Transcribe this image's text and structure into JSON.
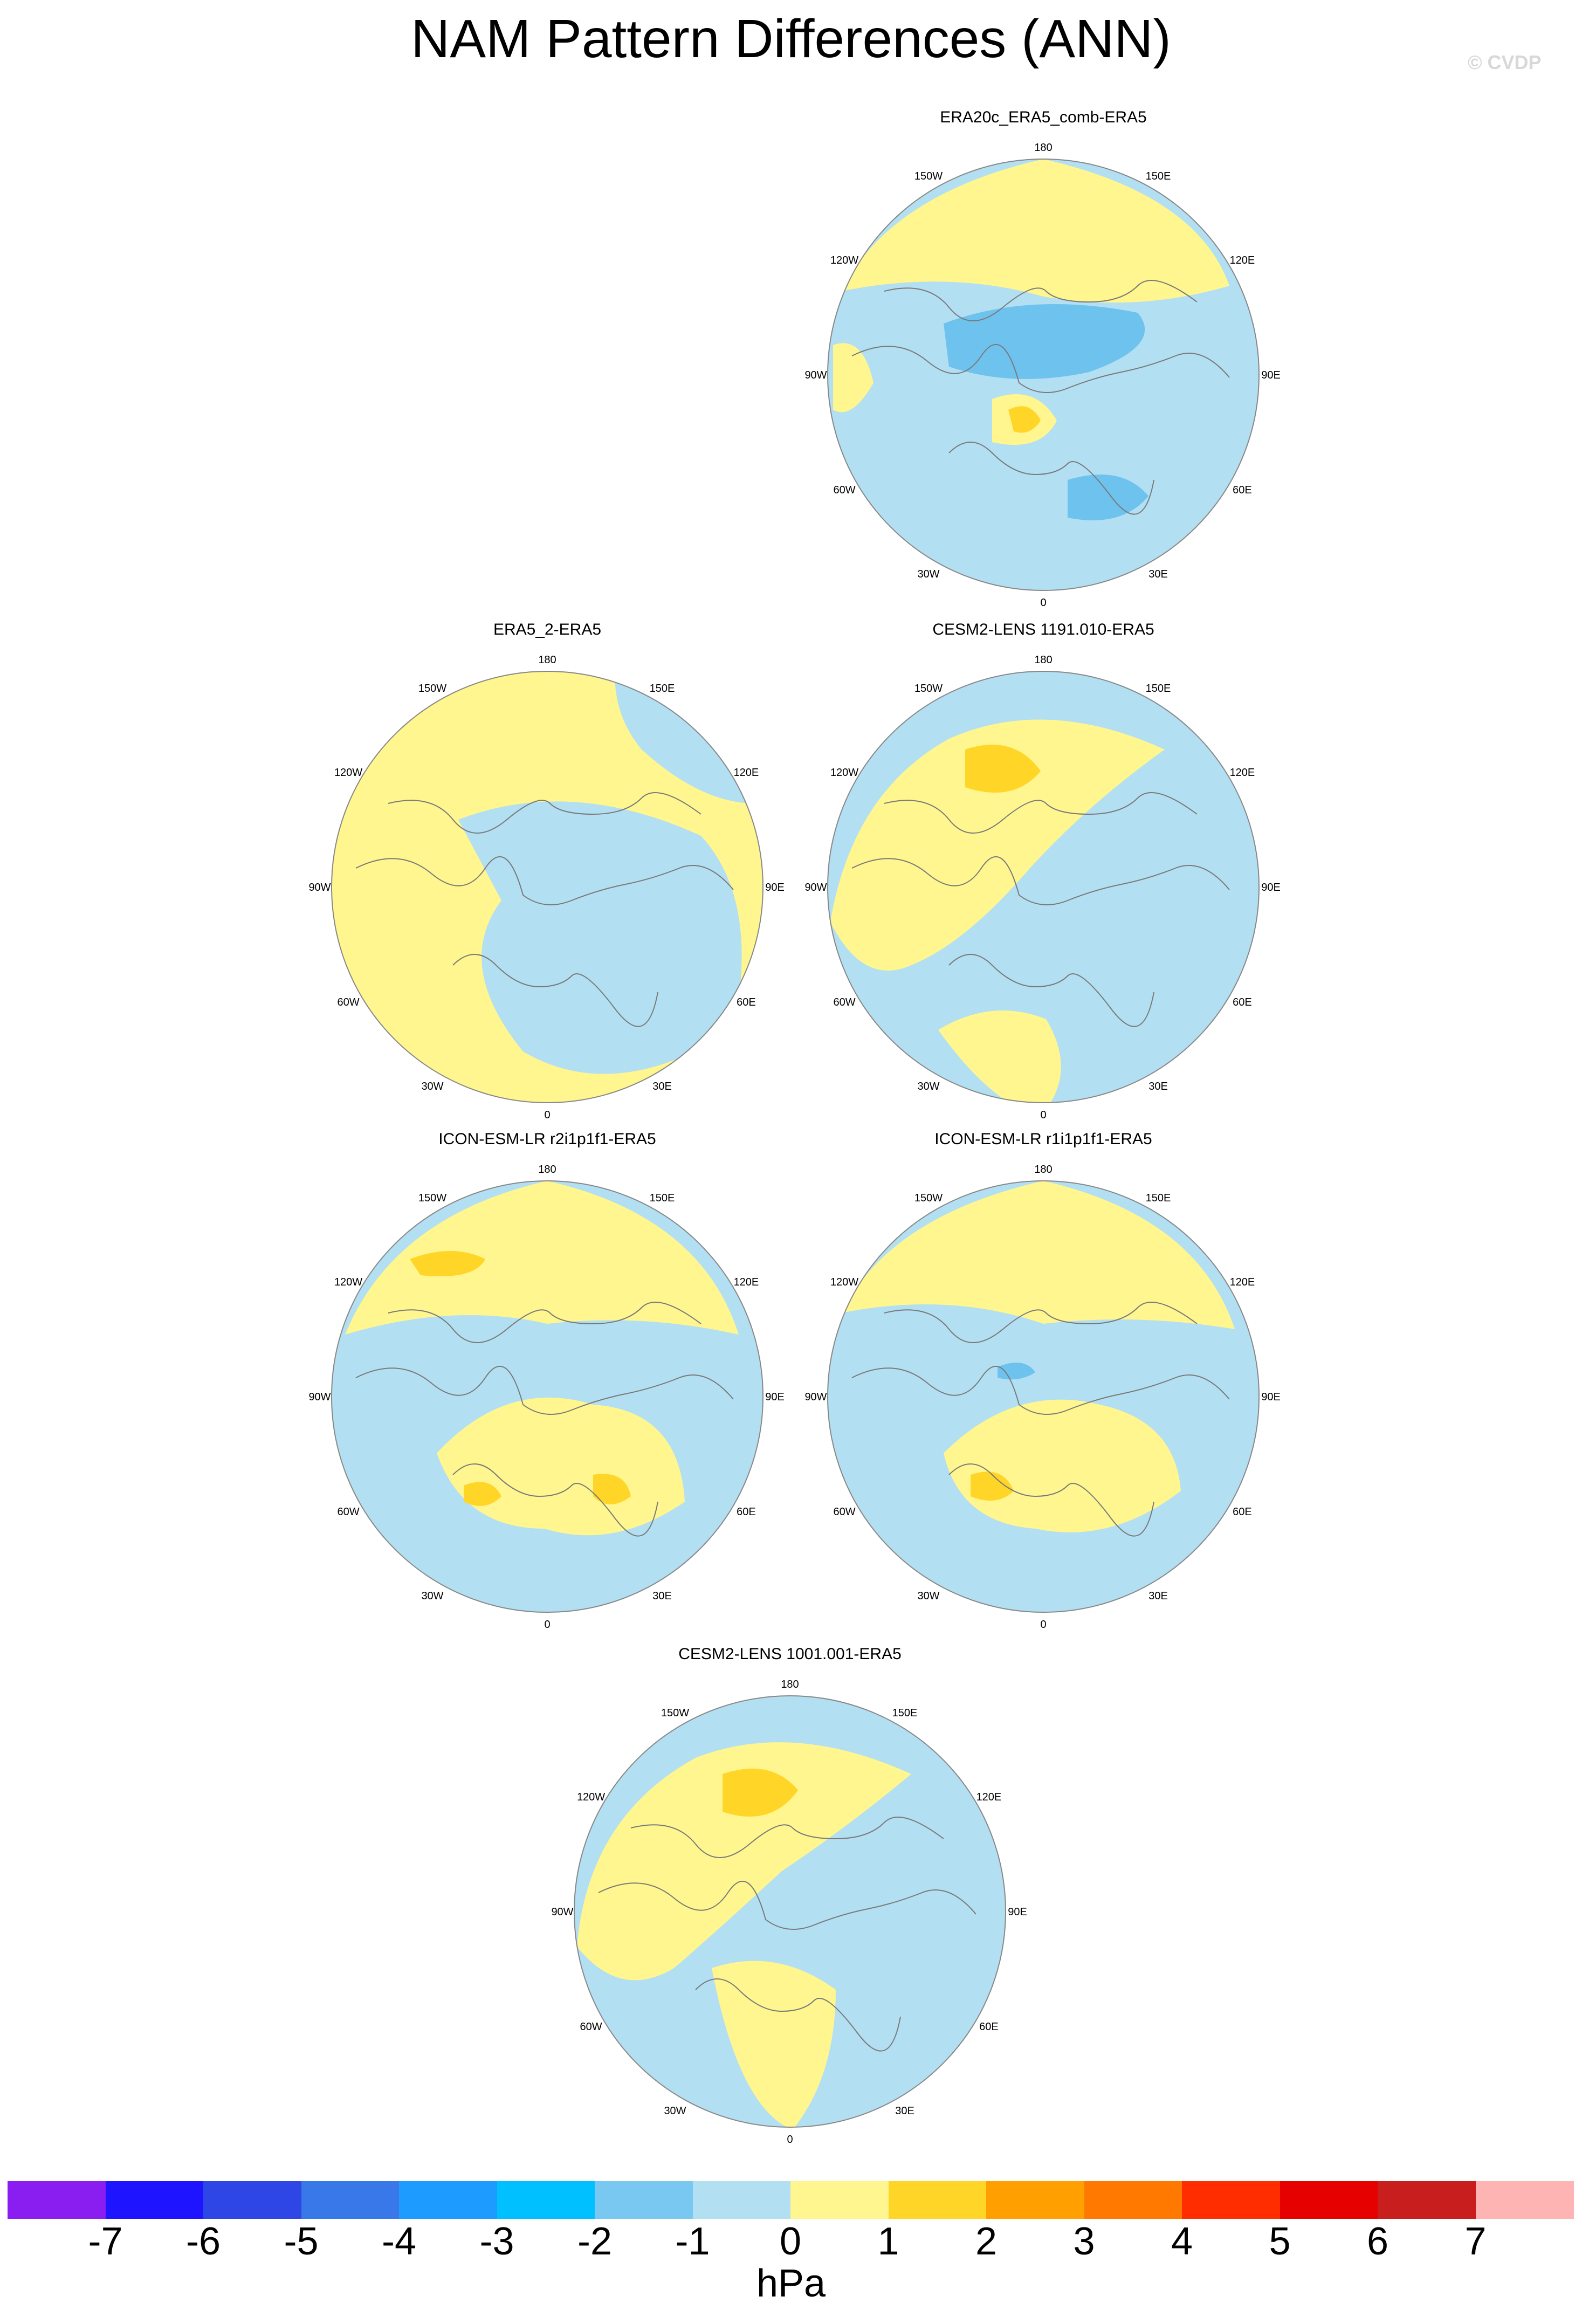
{
  "title": "NAM Pattern Differences (ANN)",
  "copyright": "© CVDP",
  "colors": {
    "light_blue": "#b3dff2",
    "light_yellow": "#fff68f",
    "gold": "#ffd628",
    "orange": "#ffa000",
    "mid_blue": "#6ec2ee",
    "coast": "#7a7a7a",
    "frame": "#888888"
  },
  "lon_labels": [
    "180",
    "150E",
    "120E",
    "90E",
    "60E",
    "30E",
    "0",
    "30W",
    "60W",
    "90W",
    "120W",
    "150W"
  ],
  "panels": [
    {
      "title": "ERA20c_ERA5_comb-ERA5",
      "background": "light_blue",
      "features": [
        {
          "kind": "cap",
          "color": "light_yellow",
          "note": "positive over North Pacific"
        },
        {
          "kind": "blob",
          "color": "mid_blue",
          "region": "Arctic/Siberia"
        },
        {
          "kind": "blob",
          "color": "mid_blue",
          "region": "Europe"
        },
        {
          "kind": "blob",
          "color": "light_yellow",
          "region": "Atlantic"
        },
        {
          "kind": "blob",
          "color": "gold",
          "region": "Atlantic"
        },
        {
          "kind": "blob",
          "color": "light_yellow",
          "region": "North America west"
        }
      ]
    },
    {
      "title": "ERA5_2-ERA5",
      "background": "light_yellow",
      "features": [
        {
          "kind": "blob",
          "color": "light_blue",
          "region": "Eurasia/Arctic"
        },
        {
          "kind": "blob",
          "color": "light_blue",
          "region": "North Pacific east"
        }
      ]
    },
    {
      "title": "CESM2-LENS 1191.010-ERA5",
      "background": "light_blue",
      "features": [
        {
          "kind": "blob",
          "color": "light_yellow",
          "region": "North Pacific/North America"
        },
        {
          "kind": "blob",
          "color": "gold",
          "region": "Aleutians"
        },
        {
          "kind": "blob",
          "color": "light_yellow",
          "region": "Africa/Atlantic"
        }
      ]
    },
    {
      "title": "ICON-ESM-LR r2i1p1f1-ERA5",
      "background": "light_blue",
      "features": [
        {
          "kind": "cap",
          "color": "light_yellow",
          "note": "positive over North Pacific"
        },
        {
          "kind": "blob",
          "color": "gold",
          "region": "North Pacific"
        },
        {
          "kind": "blob",
          "color": "light_yellow",
          "region": "Atlantic/Europe"
        },
        {
          "kind": "blob",
          "color": "gold",
          "region": "Atlantic"
        },
        {
          "kind": "blob",
          "color": "gold",
          "region": "Scandinavia"
        }
      ]
    },
    {
      "title": "ICON-ESM-LR r1i1p1f1-ERA5",
      "background": "light_blue",
      "features": [
        {
          "kind": "cap",
          "color": "light_yellow",
          "note": "positive over North Pacific"
        },
        {
          "kind": "blob",
          "color": "light_yellow",
          "region": "Atlantic/Europe"
        },
        {
          "kind": "blob",
          "color": "gold",
          "region": "Atlantic"
        },
        {
          "kind": "blob",
          "color": "mid_blue",
          "region": "Arctic"
        }
      ]
    },
    {
      "title": "CESM2-LENS 1001.001-ERA5",
      "background": "light_blue",
      "features": [
        {
          "kind": "blob",
          "color": "light_yellow",
          "region": "North America/North Pacific"
        },
        {
          "kind": "blob",
          "color": "gold",
          "region": "North Pacific"
        },
        {
          "kind": "blob",
          "color": "light_yellow",
          "region": "Atlantic/Europe"
        }
      ]
    }
  ],
  "colorbar": {
    "colors": [
      "#8a1ef0",
      "#1e14ff",
      "#2e46e6",
      "#3878e8",
      "#1e9bff",
      "#00c0ff",
      "#78c8f2",
      "#b3dff2",
      "#fff68f",
      "#ffd628",
      "#ffa000",
      "#ff7800",
      "#ff2d00",
      "#e60000",
      "#c81e1e",
      "#ffb4b4"
    ],
    "ticks": [
      "-7",
      "-6",
      "-5",
      "-4",
      "-3",
      "-2",
      "-1",
      "0",
      "1",
      "2",
      "3",
      "4",
      "5",
      "6",
      "7"
    ],
    "units": "hPa"
  }
}
